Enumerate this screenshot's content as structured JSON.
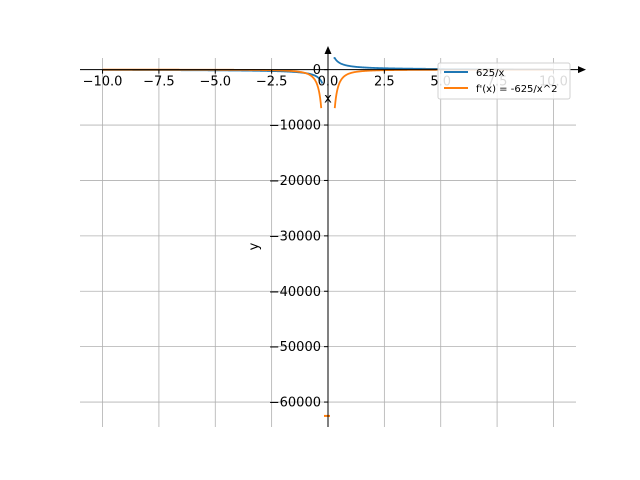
{
  "chart_data": {
    "type": "line",
    "xlabel": "x",
    "ylabel": "y",
    "xlim": [
      -11,
      11
    ],
    "ylim": [
      -64500,
      2100
    ],
    "grid": true,
    "legend_position": "top-right",
    "x_ticks": [
      -10,
      -7.5,
      -5,
      -2.5,
      0,
      2.5,
      5,
      7.5,
      10
    ],
    "x_tick_labels": [
      "−10.0",
      "−7.5",
      "−5.0",
      "−2.5",
      "0.0",
      "2.5",
      "5.0",
      "7.5",
      "10.0"
    ],
    "y_ticks": [
      0,
      -10000,
      -20000,
      -30000,
      -40000,
      -50000,
      -60000
    ],
    "y_tick_labels": [
      "0",
      "−10000",
      "−20000",
      "−30000",
      "−40000",
      "−50000",
      "−60000"
    ],
    "series": [
      {
        "name": "625/x",
        "color": "#1f77b4",
        "formula": "625/x"
      },
      {
        "name": "f'(x) = -625/x^2",
        "color": "#ff7f0e",
        "formula": "-625/x^2"
      }
    ],
    "outlier_point": {
      "x": 0.1,
      "y": -62500
    }
  }
}
